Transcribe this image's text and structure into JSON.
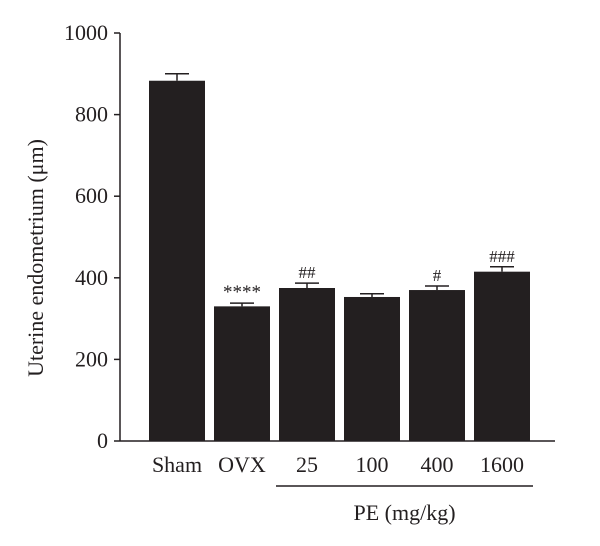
{
  "chart_data": {
    "type": "bar",
    "ylabel": "Uterine endometrium (μm)",
    "ylim": [
      0,
      1000
    ],
    "yticks": [
      0,
      200,
      400,
      600,
      800,
      1000
    ],
    "categories": [
      "Sham",
      "OVX",
      "25",
      "100",
      "400",
      "1600"
    ],
    "values": [
      883,
      330,
      375,
      353,
      370,
      415
    ],
    "errors": [
      17,
      8,
      12,
      8,
      10,
      12
    ],
    "annotations": [
      "",
      "****",
      "##",
      "",
      "#",
      "###"
    ],
    "group_label": "PE (mg/kg)",
    "group_categories": [
      "25",
      "100",
      "400",
      "1600"
    ],
    "bar_color": "#231f20",
    "grid": false,
    "legend": "none"
  }
}
